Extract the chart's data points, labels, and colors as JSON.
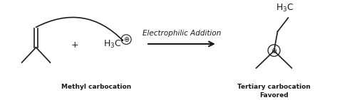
{
  "bg_color": "#ffffff",
  "text_color": "#1a1a1a",
  "reaction_label": "Electrophilic Addition",
  "label_left": "Methyl carbocation",
  "label_right1": "Tertiary carbocation",
  "label_right2": "Favored",
  "plus_sign": "+",
  "plus_charge": "⊕",
  "figsize": [
    4.8,
    1.41
  ],
  "dpi": 100
}
